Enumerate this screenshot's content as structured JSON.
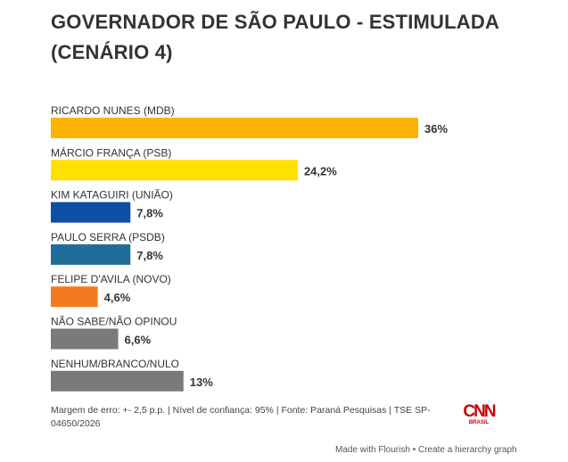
{
  "chart_data": {
    "type": "bar",
    "orientation": "horizontal",
    "title": "GOVERNADOR DE SÃO PAULO - ESTIMULADA (CENÁRIO 4)",
    "categories": [
      "RICARDO NUNES (MDB)",
      "MÁRCIO FRANÇA (PSB)",
      "KIM KATAGUIRI (UNIÃO)",
      "PAULO SERRA (PSDB)",
      "FELIPE D'AVILA (NOVO)",
      "NÃO SABE/NÃO OPINOU",
      "NENHUM/BRANCO/NULO"
    ],
    "values": [
      36,
      24.2,
      7.8,
      7.8,
      4.6,
      6.6,
      13
    ],
    "value_labels": [
      "36%",
      "24,2%",
      "7,8%",
      "7,8%",
      "4,6%",
      "6,6%",
      "13%"
    ],
    "colors": [
      "#FDB400",
      "#FFE000",
      "#0D4EA6",
      "#1F6E99",
      "#F47A20",
      "#7A7A7A",
      "#7A7A7A"
    ],
    "xlim": [
      0,
      36
    ],
    "grid": false,
    "legend": "none"
  },
  "footer": {
    "note": "Margem de erro: +- 2,5 p.p. | Nível de confiança: 95% | Fonte: Paraná Pesquisas | TSE SP-04650/2026",
    "logo": "CNN BRASIL",
    "made_with": "Made with Flourish • Create a hierarchy graph"
  }
}
